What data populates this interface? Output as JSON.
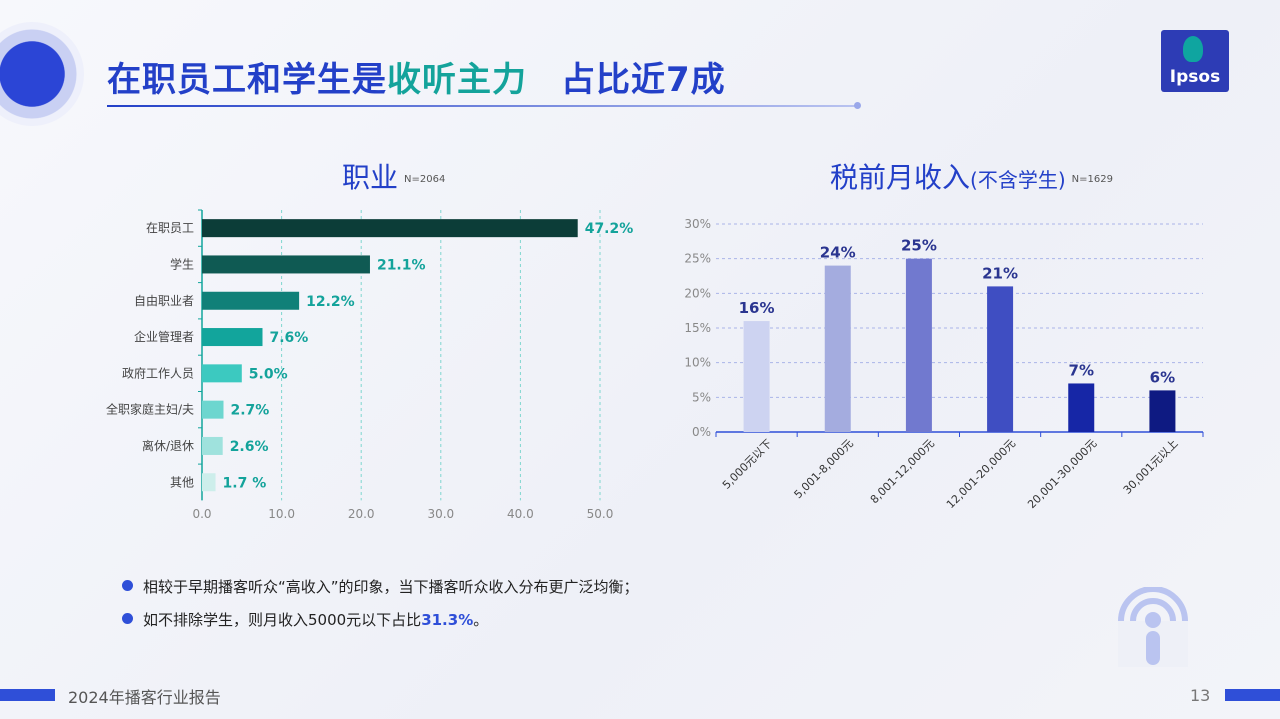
{
  "page": {
    "title_part1": "在职员工和学生是",
    "title_part2": "收听主力",
    "title_part3": "占比近7成",
    "logo_text": "Ipsos",
    "bullets": [
      {
        "text": "相较于早期播客听众“高收入”的印象，当下播客听众收入分布更广泛均衡；",
        "highlight": "",
        "suffix": ""
      },
      {
        "text": "如不排除学生，则月收入5000元以下占比",
        "highlight": "31.3%",
        "suffix": "。"
      }
    ],
    "footer_text": "2024年播客行业报告",
    "page_number": "13",
    "colors": {
      "primary": "#2340c8",
      "teal": "#14a39b"
    }
  },
  "chart_data": [
    {
      "type": "bar",
      "orientation": "horizontal",
      "title": "职业",
      "note": "N=2064",
      "categories": [
        "在职员工",
        "学生",
        "自由职业者",
        "企业管理者",
        "政府工作人员",
        "全职家庭主妇/夫",
        "离休/退休",
        "其他"
      ],
      "values": [
        47.2,
        21.1,
        12.2,
        7.6,
        5.0,
        2.7,
        2.6,
        1.7
      ],
      "value_labels": [
        "47.2%",
        "21.1%",
        "12.2%",
        "7.6%",
        "5.0%",
        "2.7%",
        "2.6%",
        "1.7 %"
      ],
      "bar_colors": [
        "#0c3d38",
        "#0f5a53",
        "#108078",
        "#12a59c",
        "#3cc9c0",
        "#6dd6cf",
        "#9fe2dd",
        "#cdeeeb"
      ],
      "xlim": [
        0,
        50
      ],
      "xticks": [
        "0.0",
        "10.0",
        "20.0",
        "30.0",
        "40.0",
        "50.0"
      ],
      "grid": "vertical dashed"
    },
    {
      "type": "bar",
      "title": "税前月收入",
      "subtitle": "(不含学生)",
      "note": "N=1629",
      "categories": [
        "5,000元以下",
        "5,001-8,000元",
        "8,001-12,000元",
        "12,001-20,000元",
        "20,001-30,000元",
        "30,001元以上"
      ],
      "values": [
        16,
        24,
        25,
        21,
        7,
        6
      ],
      "value_labels": [
        "16%",
        "24%",
        "25%",
        "21%",
        "7%",
        "6%"
      ],
      "bar_colors": [
        "#cdd3f1",
        "#a4acdf",
        "#7179cf",
        "#3f4ec2",
        "#1626a6",
        "#0e1a82"
      ],
      "ylim": [
        0,
        30
      ],
      "yticks": [
        "0%",
        "5%",
        "10%",
        "15%",
        "20%",
        "25%",
        "30%"
      ],
      "grid": "horizontal dashed"
    }
  ]
}
